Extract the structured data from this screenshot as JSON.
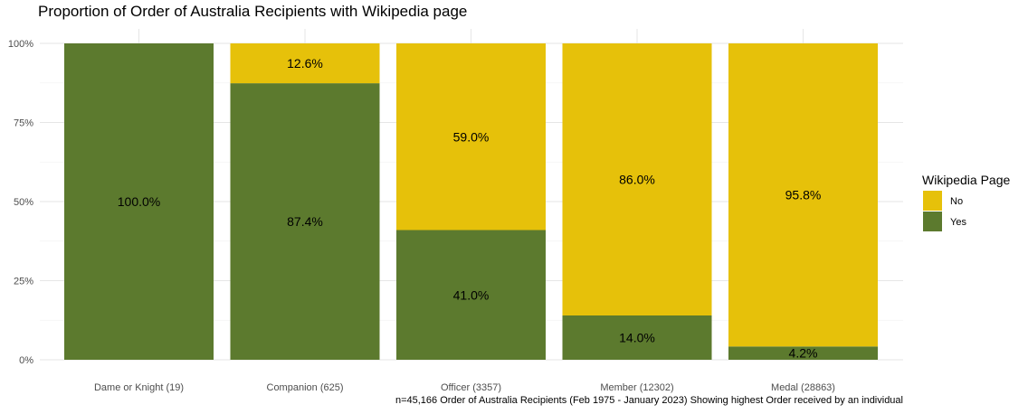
{
  "chart_data": {
    "type": "bar",
    "stacked": true,
    "title": "Proportion of Order of Australia Recipients with Wikipedia page",
    "xlabel": "",
    "ylabel": "",
    "ylim": [
      0,
      1
    ],
    "y_ticks": [
      0,
      0.25,
      0.5,
      0.75,
      1
    ],
    "y_tick_labels": [
      "0%",
      "25%",
      "50%",
      "75%",
      "100%"
    ],
    "categories": [
      "Dame or Knight (19)",
      "Companion (625)",
      "Officer (3357)",
      "Member (12302)",
      "Medal (28863)"
    ],
    "series": [
      {
        "name": "Yes",
        "color": "#5c7a2e",
        "values": [
          1.0,
          0.874,
          0.41,
          0.14,
          0.042
        ],
        "labels": [
          "100.0%",
          "87.4%",
          "41.0%",
          "14.0%",
          "4.2%"
        ]
      },
      {
        "name": "No",
        "color": "#e6c10a",
        "values": [
          0.0,
          0.126,
          0.59,
          0.86,
          0.958
        ],
        "labels": [
          "",
          "12.6%",
          "59.0%",
          "86.0%",
          "95.8%"
        ]
      }
    ],
    "legend": {
      "title": "Wikipedia Page",
      "placement": "right",
      "items": [
        {
          "name": "No",
          "color": "#e6c10a"
        },
        {
          "name": "Yes",
          "color": "#5c7a2e"
        }
      ]
    },
    "caption": "n=45,166 Order of Australia Recipients (Feb 1975 - January 2023) Showing highest Order received by an individual",
    "grid": true
  }
}
